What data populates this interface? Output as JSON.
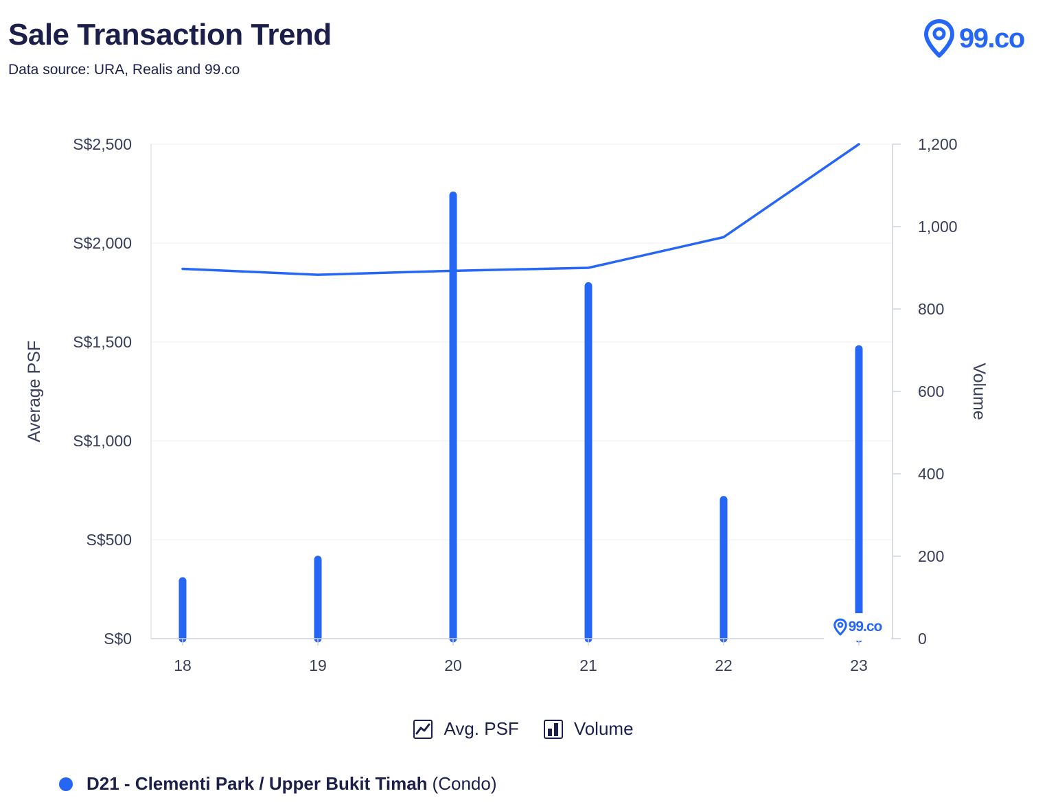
{
  "header": {
    "title": "Sale Transaction Trend",
    "subtitle": "Data source: URA, Realis and 99.co",
    "brand": "99.co",
    "watermark": "99.co"
  },
  "legend": {
    "items": [
      {
        "label": "Avg. PSF",
        "icon": "line-chart-icon"
      },
      {
        "label": "Volume",
        "icon": "bar-chart-icon"
      }
    ]
  },
  "series_label": {
    "name": "D21 - Clementi Park / Upper Bukit Timah",
    "type": "(Condo)"
  },
  "colors": {
    "accent": "#2566f5",
    "text": "#1c1f4a",
    "grid": "#f1f1f4"
  },
  "chart_data": {
    "type": "bar",
    "categories": [
      "18",
      "19",
      "20",
      "21",
      "22",
      "23"
    ],
    "series": [
      {
        "name": "Avg. PSF",
        "type": "line",
        "axis": "left",
        "values": [
          1870,
          1840,
          1860,
          1875,
          2030,
          2500
        ]
      },
      {
        "name": "Volume",
        "type": "bar",
        "axis": "right",
        "values": [
          140,
          192,
          1076,
          856,
          337,
          703
        ]
      }
    ],
    "y_left": {
      "label": "Average PSF",
      "range": [
        0,
        2500
      ],
      "ticks": [
        0,
        500,
        1000,
        1500,
        2000,
        2500
      ],
      "tick_labels": [
        "S$0",
        "S$500",
        "S$1,000",
        "S$1,500",
        "S$2,000",
        "S$2,500"
      ]
    },
    "y_right": {
      "label": "Volume",
      "range": [
        0,
        1200
      ],
      "ticks": [
        0,
        200,
        400,
        600,
        800,
        1000,
        1200
      ],
      "tick_labels": [
        "0",
        "200",
        "400",
        "600",
        "800",
        "1,000",
        "1,200"
      ]
    },
    "grid": true,
    "legend_position": "bottom"
  }
}
